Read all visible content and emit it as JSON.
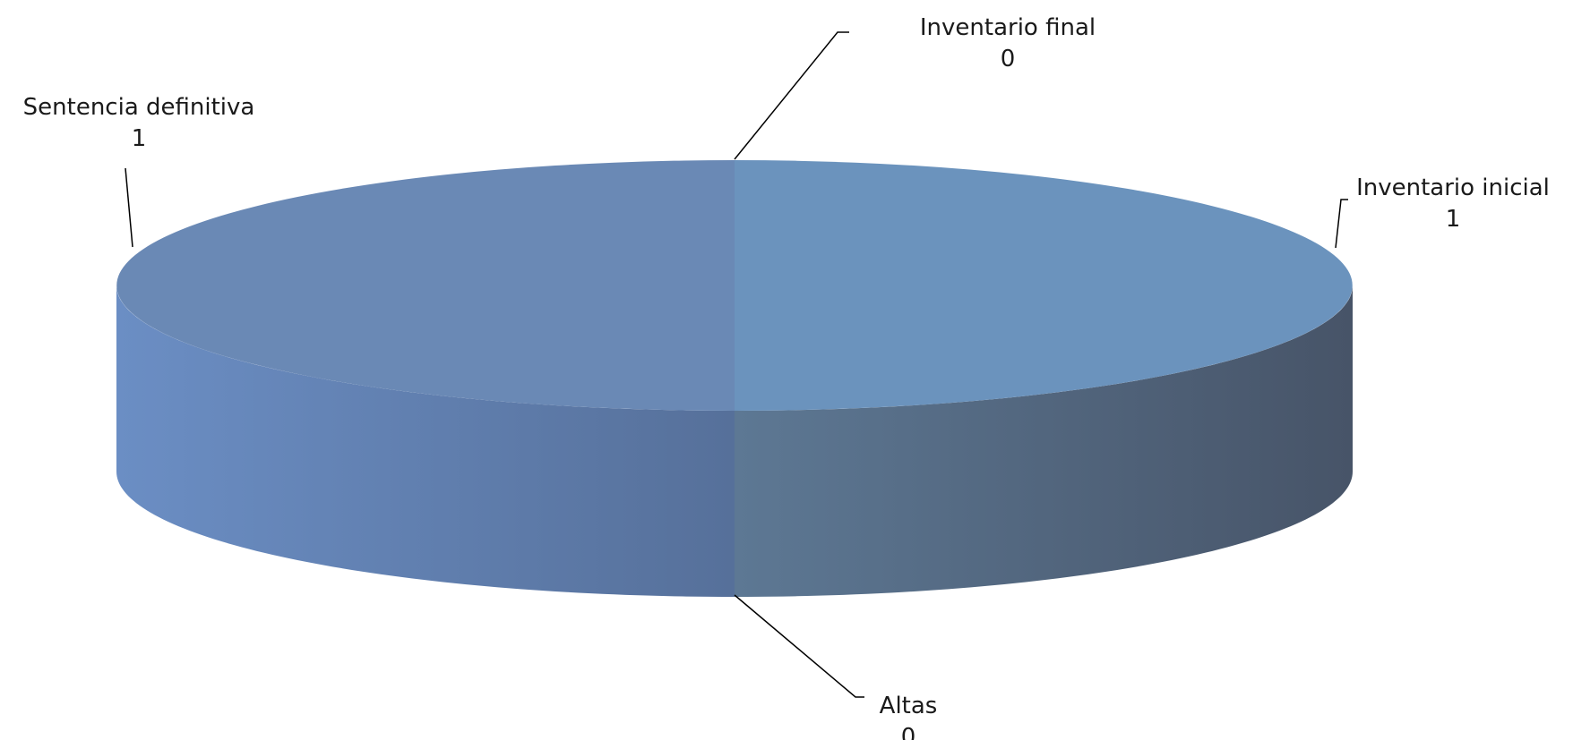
{
  "chart_data": {
    "type": "pie",
    "style": "3d",
    "title": "",
    "slices": [
      {
        "label": "Inventario inicial",
        "value": 1,
        "color": "#6b93bd",
        "side_color": "#4a5a73"
      },
      {
        "label": "Altas",
        "value": 0,
        "color": "#6b8fbf",
        "side_color": "#5a7499"
      },
      {
        "label": "Sentencia definitiva",
        "value": 1,
        "color": "#6a89b5",
        "side_color": "#5a7aa8"
      },
      {
        "label": "Inventario final",
        "value": 0,
        "color": "#6b93bd",
        "side_color": "#4a5a73"
      }
    ],
    "legend": "none",
    "data_labels": "outside with leader lines"
  }
}
